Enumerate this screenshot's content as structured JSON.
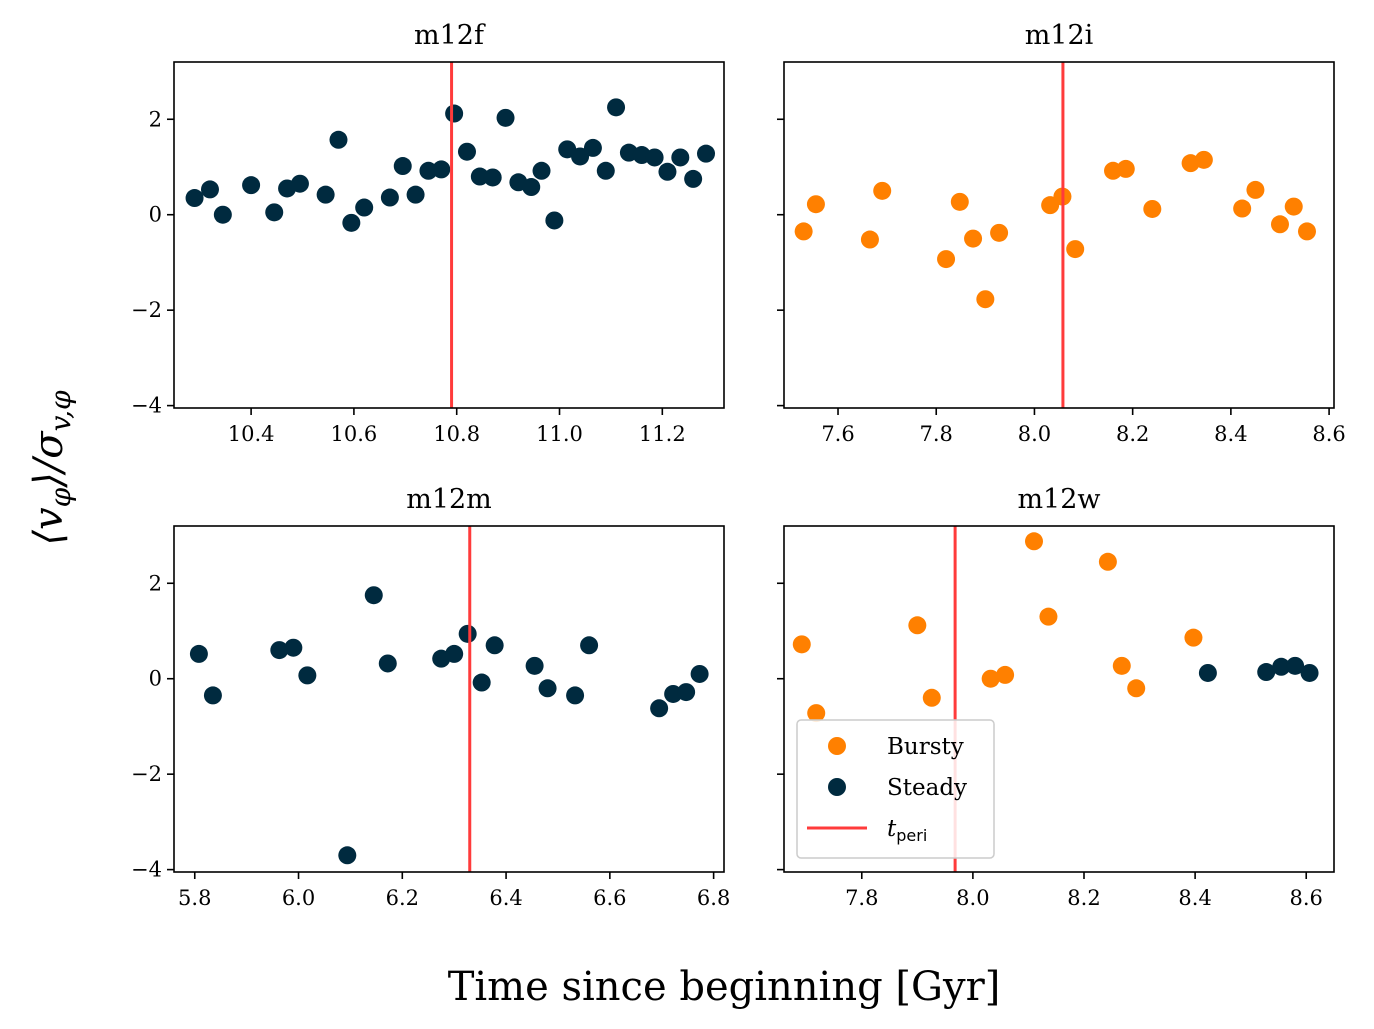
{
  "colors": {
    "bursty": "#ff8000",
    "steady": "#002a3f",
    "tperi": "#ff3b3b",
    "axes": "#000000"
  },
  "figure": {
    "xlabel": "Time since beginning [Gyr]",
    "ylabel": "⟨v_φ⟩/σ_{v,φ}",
    "ylabel_parts": [
      "⟨v",
      "φ",
      "⟩/σ",
      "v,φ"
    ]
  },
  "legend": {
    "placement": "lower-left of m12w panel",
    "entries": [
      {
        "label": "Bursty",
        "marker": "circle",
        "color_key": "bursty"
      },
      {
        "label": "Steady",
        "marker": "circle",
        "color_key": "steady"
      },
      {
        "label": "t",
        "label_sub": "peri",
        "marker": "line",
        "color_key": "tperi"
      }
    ]
  },
  "chart_data": [
    {
      "type": "scatter",
      "title": "m12f",
      "xlim": [
        10.25,
        11.32
      ],
      "ylim": [
        -4.05,
        3.2
      ],
      "xticks": [
        10.4,
        10.6,
        10.8,
        11.0,
        11.2
      ],
      "xtick_labels": [
        "10.4",
        "10.6",
        "10.8",
        "11.0",
        "11.2"
      ],
      "yticks": [
        2,
        0,
        -2,
        -4
      ],
      "ytick_labels": [
        "2",
        "0",
        "−2",
        "−4"
      ],
      "show_ytick_labels": true,
      "t_peri": 10.79,
      "series": [
        {
          "name": "Steady",
          "color_key": "steady",
          "points": [
            [
              10.29,
              0.35
            ],
            [
              10.32,
              0.53
            ],
            [
              10.345,
              0.0
            ],
            [
              10.4,
              0.62
            ],
            [
              10.445,
              0.05
            ],
            [
              10.47,
              0.55
            ],
            [
              10.495,
              0.65
            ],
            [
              10.545,
              0.42
            ],
            [
              10.57,
              1.57
            ],
            [
              10.595,
              -0.17
            ],
            [
              10.62,
              0.15
            ],
            [
              10.67,
              0.36
            ],
            [
              10.695,
              1.02
            ],
            [
              10.72,
              0.42
            ],
            [
              10.745,
              0.92
            ],
            [
              10.77,
              0.95
            ],
            [
              10.795,
              2.12
            ],
            [
              10.82,
              1.32
            ],
            [
              10.845,
              0.8
            ],
            [
              10.87,
              0.78
            ],
            [
              10.895,
              2.03
            ],
            [
              10.92,
              0.68
            ],
            [
              10.945,
              0.58
            ],
            [
              10.965,
              0.92
            ],
            [
              10.99,
              -0.12
            ],
            [
              11.015,
              1.37
            ],
            [
              11.04,
              1.22
            ],
            [
              11.065,
              1.4
            ],
            [
              11.09,
              0.92
            ],
            [
              11.11,
              2.25
            ],
            [
              11.135,
              1.3
            ],
            [
              11.16,
              1.25
            ],
            [
              11.185,
              1.2
            ],
            [
              11.21,
              0.9
            ],
            [
              11.235,
              1.2
            ],
            [
              11.26,
              0.75
            ],
            [
              11.285,
              1.28
            ]
          ]
        }
      ]
    },
    {
      "type": "scatter",
      "title": "m12i",
      "xlim": [
        7.49,
        8.61
      ],
      "ylim": [
        -4.05,
        3.2
      ],
      "xticks": [
        7.6,
        7.8,
        8.0,
        8.2,
        8.4,
        8.6
      ],
      "xtick_labels": [
        "7.6",
        "7.8",
        "8.0",
        "8.2",
        "8.4",
        "8.6"
      ],
      "yticks": [
        2,
        0,
        -2,
        -4
      ],
      "ytick_labels": [
        "2",
        "0",
        "−2",
        "−4"
      ],
      "show_ytick_labels": false,
      "t_peri": 8.058,
      "series": [
        {
          "name": "Bursty",
          "color_key": "bursty",
          "points": [
            [
              7.53,
              -0.35
            ],
            [
              7.555,
              0.22
            ],
            [
              7.665,
              -0.52
            ],
            [
              7.69,
              0.5
            ],
            [
              7.82,
              -0.93
            ],
            [
              7.848,
              0.27
            ],
            [
              7.875,
              -0.5
            ],
            [
              7.9,
              -1.77
            ],
            [
              7.928,
              -0.38
            ],
            [
              8.032,
              0.2
            ],
            [
              8.057,
              0.38
            ],
            [
              8.083,
              -0.72
            ],
            [
              8.16,
              0.92
            ],
            [
              8.186,
              0.96
            ],
            [
              8.24,
              0.12
            ],
            [
              8.318,
              1.08
            ],
            [
              8.345,
              1.15
            ],
            [
              8.423,
              0.13
            ],
            [
              8.45,
              0.52
            ],
            [
              8.5,
              -0.2
            ],
            [
              8.528,
              0.17
            ],
            [
              8.555,
              -0.35
            ]
          ]
        }
      ]
    },
    {
      "type": "scatter",
      "title": "m12m",
      "xlim": [
        5.76,
        6.82
      ],
      "ylim": [
        -4.05,
        3.2
      ],
      "xticks": [
        5.8,
        6.0,
        6.2,
        6.4,
        6.6,
        6.8
      ],
      "xtick_labels": [
        "5.8",
        "6.0",
        "6.2",
        "6.4",
        "6.6",
        "6.8"
      ],
      "yticks": [
        2,
        0,
        -2,
        -4
      ],
      "ytick_labels": [
        "2",
        "0",
        "−2",
        "−4"
      ],
      "show_ytick_labels": true,
      "t_peri": 6.33,
      "series": [
        {
          "name": "Steady",
          "color_key": "steady",
          "points": [
            [
              5.808,
              0.52
            ],
            [
              5.835,
              -0.35
            ],
            [
              5.963,
              0.6
            ],
            [
              5.99,
              0.65
            ],
            [
              6.017,
              0.07
            ],
            [
              6.094,
              -3.7
            ],
            [
              6.145,
              1.75
            ],
            [
              6.172,
              0.32
            ],
            [
              6.275,
              0.42
            ],
            [
              6.3,
              0.52
            ],
            [
              6.326,
              0.94
            ],
            [
              6.353,
              -0.08
            ],
            [
              6.378,
              0.7
            ],
            [
              6.455,
              0.27
            ],
            [
              6.48,
              -0.2
            ],
            [
              6.533,
              -0.35
            ],
            [
              6.56,
              0.7
            ],
            [
              6.695,
              -0.62
            ],
            [
              6.722,
              -0.32
            ],
            [
              6.747,
              -0.28
            ],
            [
              6.773,
              0.1
            ]
          ]
        }
      ]
    },
    {
      "type": "scatter",
      "title": "m12w",
      "xlim": [
        7.66,
        8.65
      ],
      "ylim": [
        -4.05,
        3.2
      ],
      "xticks": [
        7.8,
        8.0,
        8.2,
        8.4,
        8.6
      ],
      "xtick_labels": [
        "7.8",
        "8.0",
        "8.2",
        "8.4",
        "8.6"
      ],
      "yticks": [
        2,
        0,
        -2,
        -4
      ],
      "ytick_labels": [
        "2",
        "0",
        "−2",
        "−4"
      ],
      "show_ytick_labels": false,
      "t_peri": 7.968,
      "series": [
        {
          "name": "Bursty",
          "color_key": "bursty",
          "points": [
            [
              7.692,
              0.72
            ],
            [
              7.718,
              -0.72
            ],
            [
              7.9,
              1.12
            ],
            [
              7.926,
              -0.4
            ],
            [
              8.032,
              0.0
            ],
            [
              8.058,
              0.08
            ],
            [
              8.11,
              2.88
            ],
            [
              8.136,
              1.3
            ],
            [
              8.243,
              2.45
            ],
            [
              8.268,
              0.27
            ],
            [
              8.294,
              -0.2
            ],
            [
              8.397,
              0.86
            ]
          ]
        },
        {
          "name": "Steady",
          "color_key": "steady",
          "points": [
            [
              8.423,
              0.12
            ],
            [
              8.528,
              0.14
            ],
            [
              8.555,
              0.25
            ],
            [
              8.58,
              0.27
            ],
            [
              8.606,
              0.12
            ]
          ]
        }
      ]
    }
  ]
}
